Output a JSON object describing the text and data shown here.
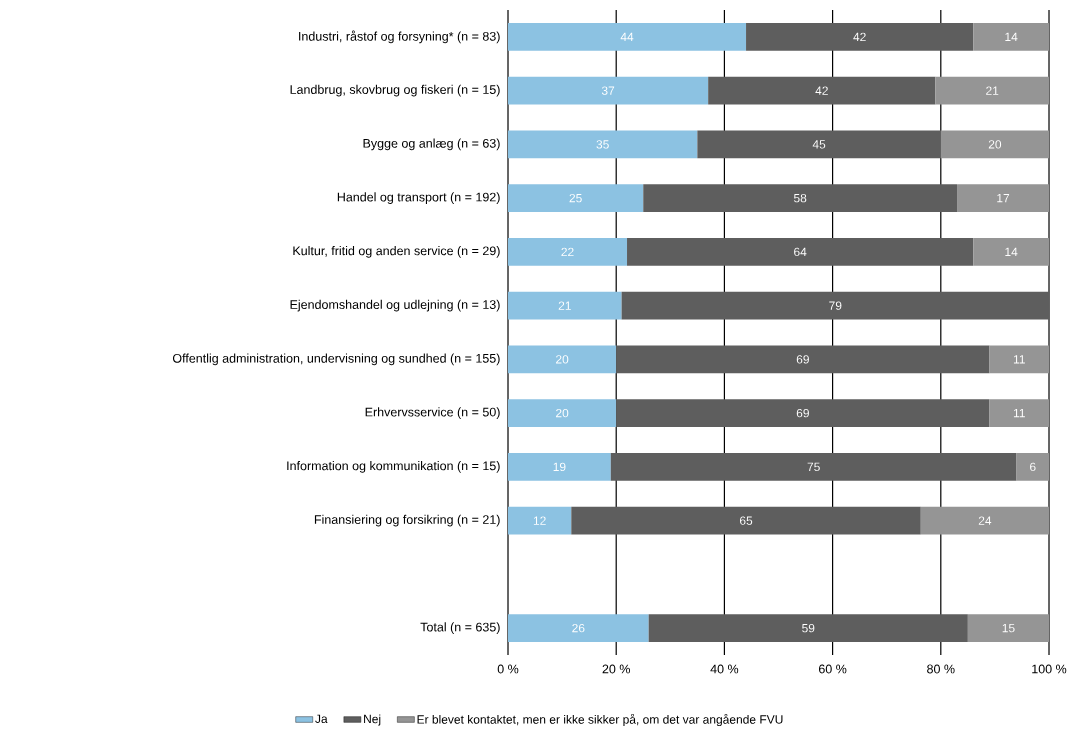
{
  "chart_data": {
    "type": "bar",
    "orientation": "horizontal",
    "stacked": true,
    "grid": "x",
    "legend": "bottom",
    "categories": [
      "Industri, råstof og forsyning* (n = 83)",
      "Landbrug, skovbrug og fiskeri (n = 15)",
      "Bygge og anlæg (n = 63)",
      "Handel og transport (n = 192)",
      "Kultur, fritid og anden service (n = 29)",
      "Ejendomshandel og udlejning (n = 13)",
      "Offentlig administration, undervisning og sundhed (n = 155)",
      "Erhvervsservice (n = 50)",
      "Information og kommunikation (n = 15)",
      "Finansiering og forsikring (n = 21)",
      null,
      "Total (n = 635)"
    ],
    "series": [
      {
        "name": "Ja",
        "color": "#8cc2e2",
        "values": [
          44,
          37,
          35,
          25,
          22,
          21,
          20,
          20,
          19,
          11.7,
          null,
          26
        ],
        "value_labels": [
          "44",
          "37",
          "35",
          "25",
          "22",
          "21",
          "20",
          "20",
          "19",
          "12",
          null,
          "26"
        ]
      },
      {
        "name": "Nej",
        "color": "#5e5e5e",
        "values": [
          42,
          42,
          45,
          58,
          64,
          79,
          69,
          69,
          75,
          64.6,
          null,
          59
        ],
        "value_labels": [
          "42",
          "42",
          "45",
          "58",
          "64",
          "79",
          "69",
          "69",
          "75",
          "65",
          null,
          "59"
        ]
      },
      {
        "name": "Er blevet kontaktet, men er ikke sikker på, om det var angående FVU",
        "color": "#959595",
        "values": [
          14,
          21,
          20,
          17,
          14,
          null,
          11,
          11,
          6,
          23.7,
          null,
          15
        ],
        "value_labels": [
          "14",
          "21",
          "20",
          "17",
          "14",
          null,
          "11",
          "11",
          "6",
          "24",
          null,
          "15"
        ]
      }
    ],
    "xlim": [
      0,
      100
    ],
    "xticks": [
      {
        "value": 0,
        "label": "0 %"
      },
      {
        "value": 20,
        "label": "20 %"
      },
      {
        "value": 40,
        "label": "40 %"
      },
      {
        "value": 60,
        "label": "60 %"
      },
      {
        "value": 80,
        "label": "80 %"
      },
      {
        "value": 100,
        "label": "100 %"
      }
    ]
  }
}
